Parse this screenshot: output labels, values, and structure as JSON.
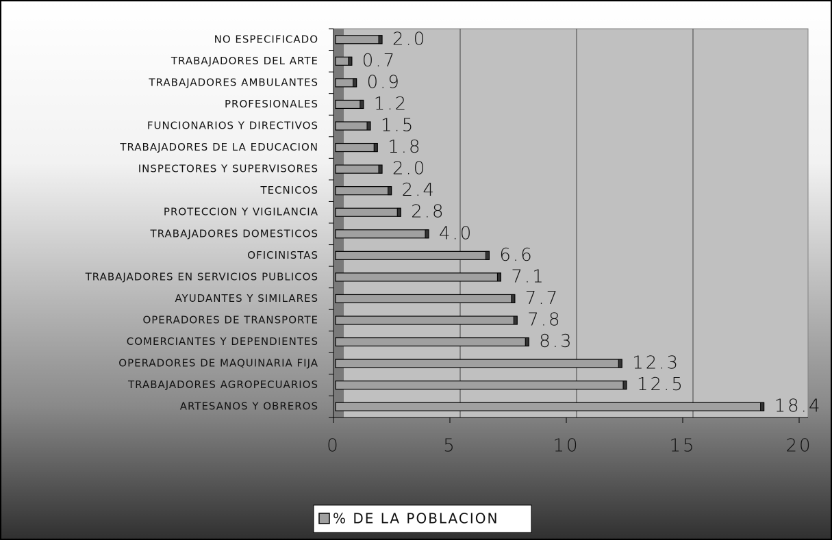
{
  "chart_data": {
    "type": "bar",
    "orientation": "horizontal",
    "categories": [
      "NO ESPECIFICADO",
      "TRABAJADORES DEL ARTE",
      "TRABAJADORES AMBULANTES",
      "PROFESIONALES",
      "FUNCIONARIOS Y DIRECTIVOS",
      "TRABAJADORES DE LA EDUCACION",
      "INSPECTORES Y SUPERVISORES",
      "TECNICOS",
      "PROTECCION Y VIGILANCIA",
      "TRABAJADORES DOMESTICOS",
      "OFICINISTAS",
      "TRABAJADORES EN SERVICIOS PUBLICOS",
      "AYUDANTES Y SIMILARES",
      "OPERADORES DE TRANSPORTE",
      "COMERCIANTES Y DEPENDIENTES",
      "OPERADORES DE MAQUINARIA FIJA",
      "TRABAJADORES AGROPECUARIOS",
      "ARTESANOS Y OBREROS"
    ],
    "series": [
      {
        "name": "% DE LA POBLACION",
        "color": "#a0a0a0",
        "values": [
          2.0,
          0.7,
          0.9,
          1.2,
          1.5,
          1.8,
          2.0,
          2.4,
          2.8,
          4.0,
          6.6,
          7.1,
          7.7,
          7.8,
          8.3,
          12.3,
          12.5,
          18.4
        ],
        "value_labels": [
          "2.0",
          "0.7",
          "0.9",
          "1.2",
          "1.5",
          "1.8",
          "2.0",
          "2.4",
          "2.8",
          "4.0",
          "6.6",
          "7.1",
          "7.7",
          "7.8",
          "8.3",
          "12.3",
          "12.5",
          "18.4"
        ]
      }
    ],
    "xlim": [
      0,
      20
    ],
    "xticks": [
      0,
      5,
      10,
      15,
      20
    ],
    "grid": true,
    "legend": "bottom"
  }
}
